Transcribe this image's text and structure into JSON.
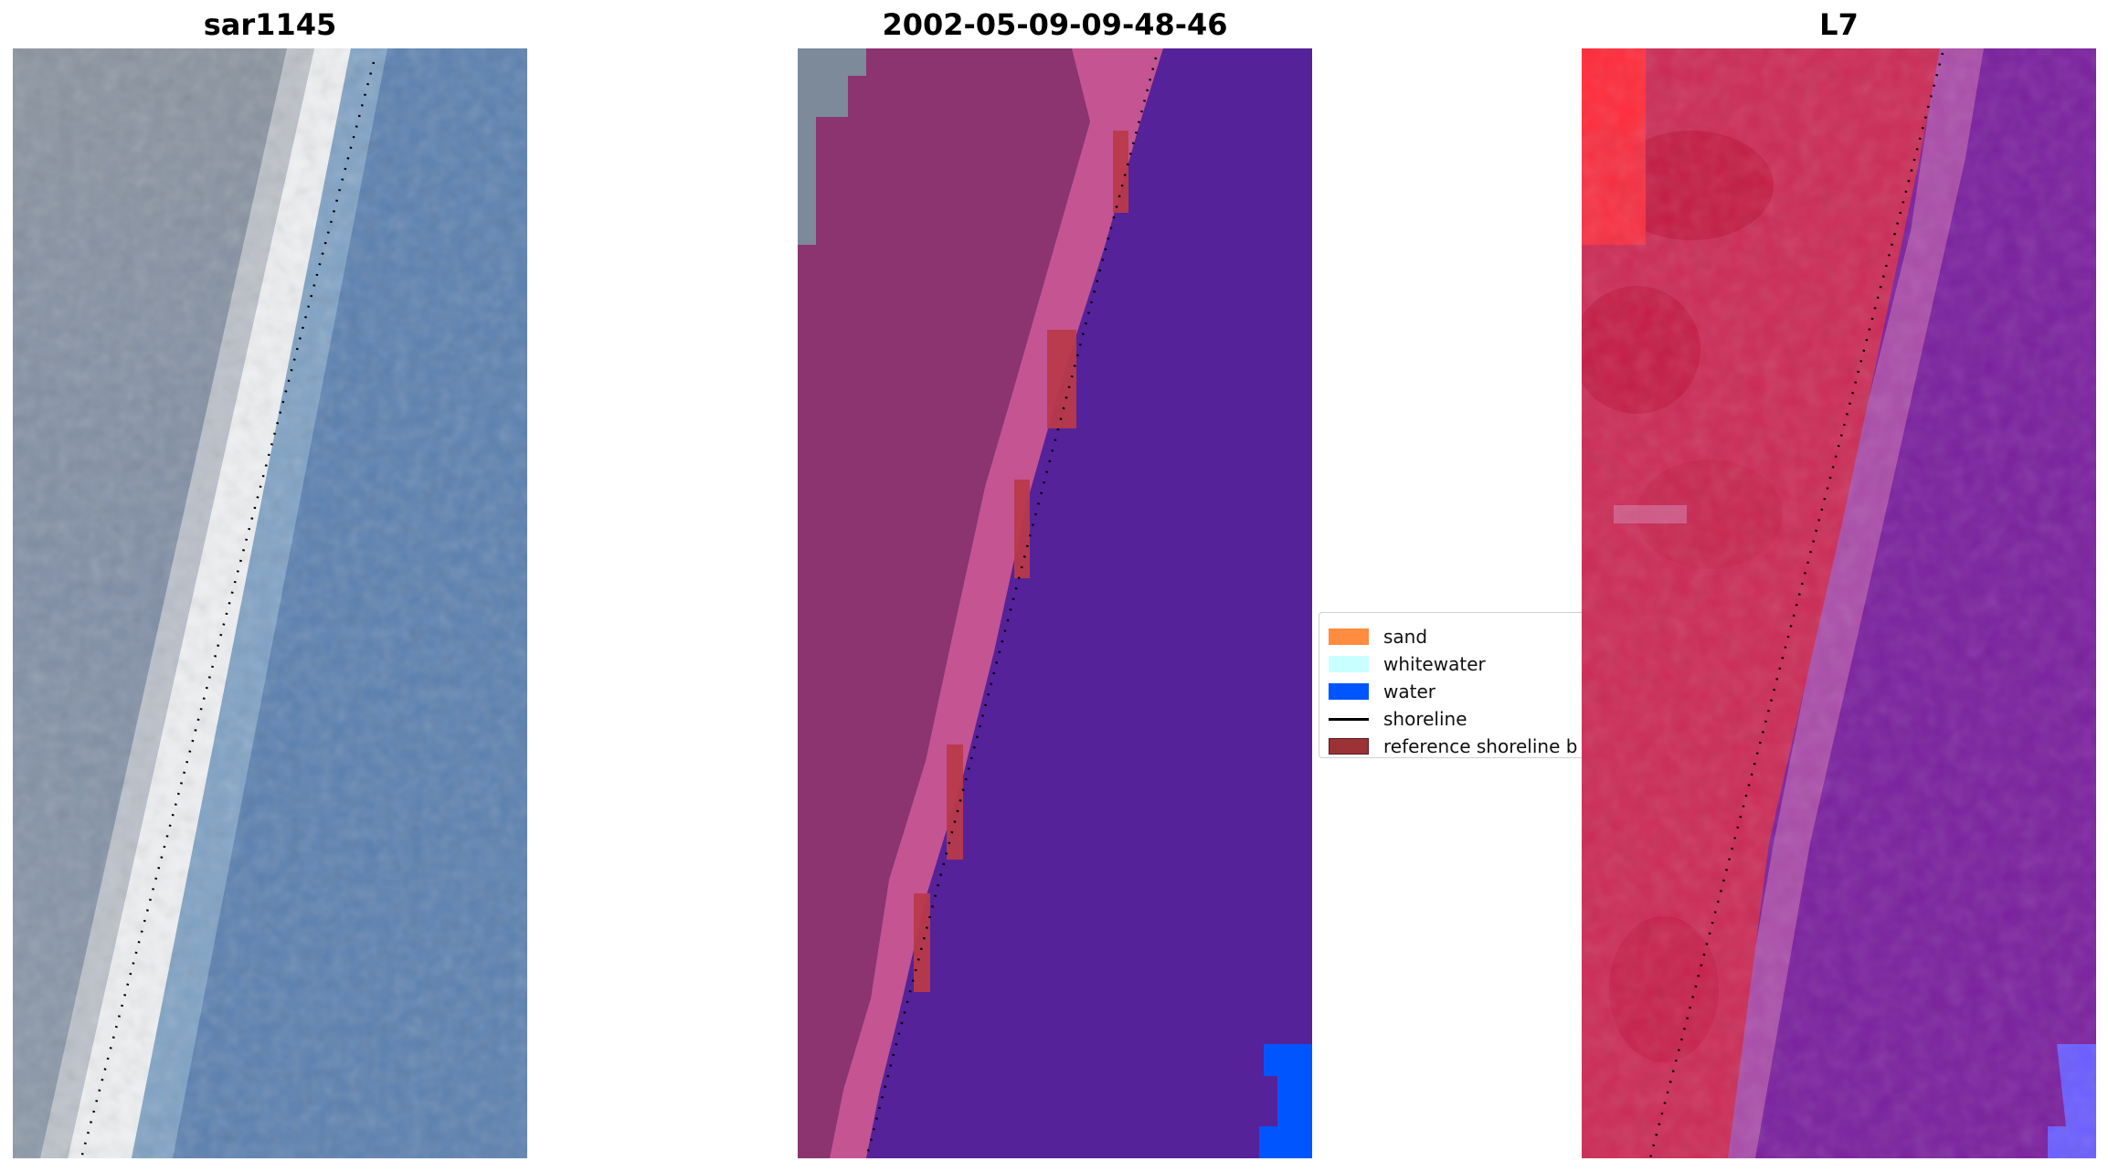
{
  "panels": [
    {
      "title": "sar1145"
    },
    {
      "title": "2002-05-09-09-48-46"
    },
    {
      "title": "L7"
    }
  ],
  "legend": {
    "items": [
      {
        "label": "sand",
        "color": "#ff8c3f"
      },
      {
        "label": "whitewater",
        "color": "#c8ffff"
      },
      {
        "label": "water",
        "color": "#0055ff"
      },
      {
        "label": "shoreline",
        "color": "#000000"
      },
      {
        "label": "reference shoreline b",
        "color": "#9b3236"
      }
    ]
  },
  "colors": {
    "land_rgb": "#8b94a3",
    "beach_rgb": "#eef0f2",
    "sea_rgb": "#5a80b0",
    "class_land": "#8b3470",
    "class_beach": "#c45592",
    "class_water": "#55229a",
    "ref_buffer": "#b83a4a",
    "fc_land": "#cc2a55",
    "fc_sea": "#7a1f9e"
  }
}
